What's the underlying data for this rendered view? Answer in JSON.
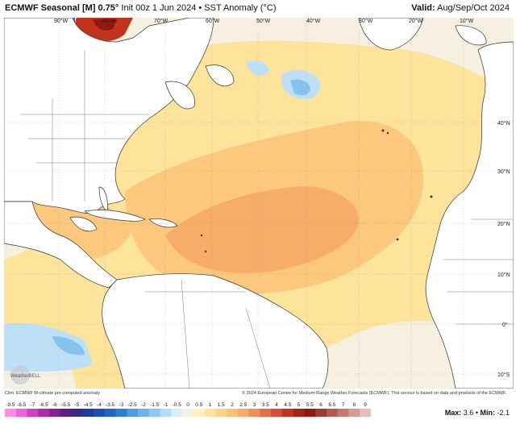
{
  "header": {
    "model": "ECMWF Seasonal [M] 0.75°",
    "init": "Init 00z 1 Jun 2024 • SST Anomaly (°C)",
    "valid_label": "Valid:",
    "valid_value": "Aug/Sep/Oct 2024"
  },
  "map": {
    "lon_labels": [
      "90°W",
      "80°W",
      "70°W",
      "60°W",
      "50°W",
      "40°W",
      "30°W",
      "20°W",
      "10°W"
    ],
    "lat_labels": [
      "40°N",
      "30°N",
      "20°N",
      "10°N",
      "0°",
      "10°S"
    ],
    "watermark": "WeatherBELL",
    "colors": {
      "water_neutral": "#f5f0df",
      "land": "#ffffff",
      "warm_light": "#fde49a",
      "warm_mid": "#fbc87e",
      "warm_orange": "#f7ac6a",
      "cool_light": "#bde0f7",
      "cool_mid": "#83c3ee",
      "cool_deep": "#2f7fd0",
      "hot_red": "#c1341b",
      "hot_deep": "#8e1a10"
    }
  },
  "footer": {
    "clim_note": "Clim: ECMWF M-climate pre-computed anomaly",
    "copyright": "© 2024 European Centre for Medium-Range Weather Forecasts (ECMWF). This service is based on data and products of the ECMWF.",
    "max_label": "Max:",
    "max_value": "3.6",
    "min_label": "Min:",
    "min_value": "-2.1"
  },
  "colorbar": {
    "ticks": [
      "-9.5",
      "-8.5",
      "-7",
      "-6.5",
      "-6",
      "-5.5",
      "-5",
      "-4.5",
      "-4",
      "-3.5",
      "-3",
      "-2.5",
      "-2",
      "-1.5",
      "-1",
      "-0.5",
      "0",
      "0.5",
      "1",
      "1.5",
      "2",
      "2.5",
      "3",
      "3.5",
      "4",
      "4.5",
      "5",
      "5.5",
      "6",
      "6.5",
      "7",
      "8",
      "9"
    ],
    "colors": [
      "#ff8fe0",
      "#f062d6",
      "#d240c4",
      "#ad2aa8",
      "#862192",
      "#5f1e85",
      "#3a2a88",
      "#23399b",
      "#1d4fb2",
      "#2065c6",
      "#2f7fd0",
      "#4d9be0",
      "#6db3ea",
      "#8fc8f1",
      "#b2dcf7",
      "#d8eefb",
      "#f6f2e4",
      "#fdf1c4",
      "#fde49a",
      "#fbd487",
      "#fac27a",
      "#f7ac6a",
      "#f08f5a",
      "#e46d49",
      "#d44f39",
      "#c1341b",
      "#a52416",
      "#8e1a10",
      "#9d3d2f",
      "#b05c4f",
      "#c47c71",
      "#d79c94",
      "#e9beb8"
    ]
  }
}
